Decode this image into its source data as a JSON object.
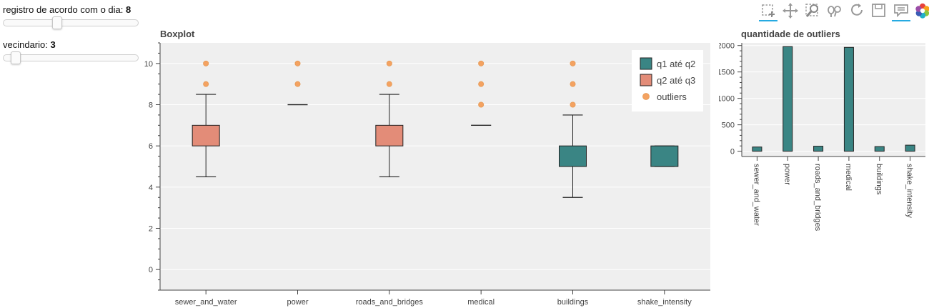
{
  "controls": {
    "day_slider": {
      "label": "registro de acordo com o dia: ",
      "value": "8",
      "fraction": 0.39
    },
    "neighborhood_slider": {
      "label": "vecindario: ",
      "value": "3",
      "fraction": 0.06
    }
  },
  "toolbar": {
    "tools": [
      {
        "name": "box-zoom-icon",
        "active": true
      },
      {
        "name": "pan-icon",
        "active": false
      },
      {
        "name": "zoom-icon",
        "active": false
      },
      {
        "name": "wheel-zoom-icon",
        "active": false
      },
      {
        "name": "reset-icon",
        "active": false
      },
      {
        "name": "save-icon",
        "active": false
      },
      {
        "name": "hover-icon",
        "active": true
      },
      {
        "name": "bokeh-logo-icon",
        "active": false
      }
    ]
  },
  "chart_data": [
    {
      "type": "boxplot",
      "title": "Boxplot",
      "categories": [
        "sewer_and_water",
        "power",
        "roads_and_bridges",
        "medical",
        "buildings",
        "shake_intensity"
      ],
      "ylim": [
        -1,
        11
      ],
      "yticks": [
        "0",
        "2",
        "4",
        "6",
        "8",
        "10"
      ],
      "grid": true,
      "boxes": [
        {
          "category": "sewer_and_water",
          "lower_whisker": 4.5,
          "q1": 6,
          "q2": 6,
          "q3": 7,
          "upper_whisker": 8.5
        },
        {
          "category": "power",
          "lower_whisker": 8,
          "q1": 8,
          "q2": 8,
          "q3": 8,
          "upper_whisker": 8
        },
        {
          "category": "roads_and_bridges",
          "lower_whisker": 4.5,
          "q1": 6,
          "q2": 6,
          "q3": 7,
          "upper_whisker": 8.5
        },
        {
          "category": "medical",
          "lower_whisker": 7,
          "q1": 7,
          "q2": 7,
          "q3": 7,
          "upper_whisker": 7
        },
        {
          "category": "buildings",
          "lower_whisker": 3.5,
          "q1": 5,
          "q2": 6,
          "q3": 6,
          "upper_whisker": 7.5
        },
        {
          "category": "shake_intensity",
          "lower_whisker": 5,
          "q1": 5,
          "q2": 6,
          "q3": 6,
          "upper_whisker": 6
        }
      ],
      "outliers": [
        {
          "category": "sewer_and_water",
          "values": [
            9,
            10
          ]
        },
        {
          "category": "power",
          "values": [
            9,
            10
          ]
        },
        {
          "category": "roads_and_bridges",
          "values": [
            9,
            10
          ]
        },
        {
          "category": "medical",
          "values": [
            8,
            9,
            10
          ]
        },
        {
          "category": "buildings",
          "values": [
            8,
            9,
            10
          ]
        }
      ],
      "legend": {
        "position": "top-right",
        "items": [
          {
            "label": "q1 até q2",
            "color": "#3a8584",
            "shape": "square"
          },
          {
            "label": "q2 até q3",
            "color": "#e38c78",
            "shape": "square"
          },
          {
            "label": "outliers",
            "color": "#f4a261",
            "shape": "circle"
          }
        ]
      },
      "colors": {
        "q1_q2": "#3a8584",
        "q2_q3": "#e38c78",
        "outlier": "#f4a261",
        "background": "#efefef"
      }
    },
    {
      "type": "bar",
      "title": "quantidade de outliers",
      "categories": [
        "sewer_and_water",
        "power",
        "roads_and_bridges",
        "medical",
        "buildings",
        "shake_intensity"
      ],
      "values": [
        80,
        1980,
        95,
        1965,
        88,
        115
      ],
      "ylim": [
        -100,
        2050
      ],
      "yticks": [
        "0",
        "500",
        "1000",
        "1500",
        "2000"
      ],
      "grid": true,
      "colors": {
        "bar": "#3a8584",
        "background": "#efefef"
      }
    }
  ]
}
